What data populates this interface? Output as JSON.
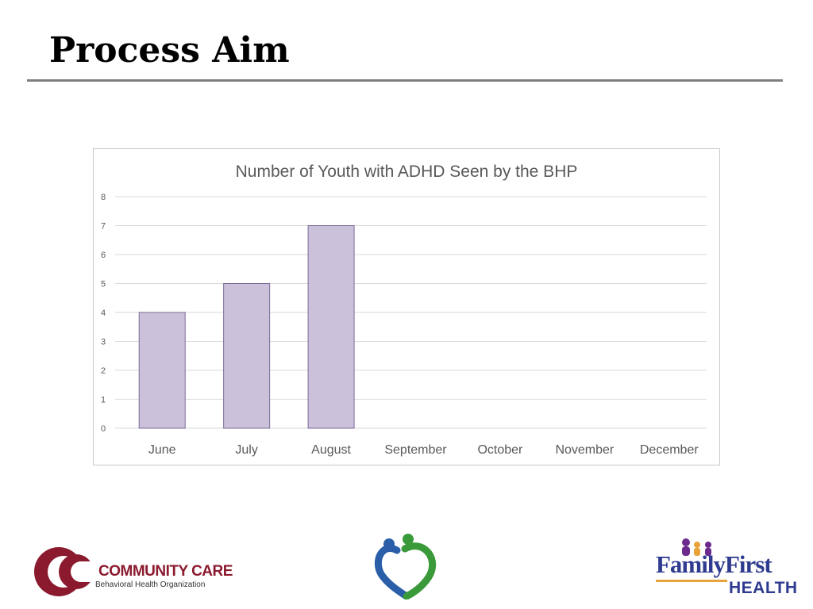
{
  "slide": {
    "title": "Process Aim"
  },
  "chart_data": {
    "type": "bar",
    "title": "Number of Youth with ADHD Seen by the BHP",
    "categories": [
      "June",
      "July",
      "August",
      "September",
      "October",
      "November",
      "December"
    ],
    "values": [
      4,
      5,
      7,
      null,
      null,
      null,
      null
    ],
    "xlabel": "",
    "ylabel": "",
    "ylim": [
      0,
      8
    ],
    "yticks": [
      0,
      1,
      2,
      3,
      4,
      5,
      6,
      7,
      8
    ],
    "grid": true,
    "legend": "none"
  },
  "logos": {
    "community_care": {
      "name": "COMMUNITY CARE",
      "subtitle": "Behavioral Health Organization"
    },
    "family_first": {
      "name": "FamilyFirst",
      "health": "HEALTH"
    }
  },
  "colors": {
    "bar_fill": "#ccc1da",
    "bar_stroke": "#7b6a99",
    "grid": "#d9d9d9",
    "axis_text": "#595959",
    "title_rule": "#7f7f7f",
    "cc_brand": "#8b1a2e",
    "ff_brand": "#2f3b8f",
    "heart_blue": "#2a5ea8",
    "heart_green": "#3a9a3a"
  }
}
